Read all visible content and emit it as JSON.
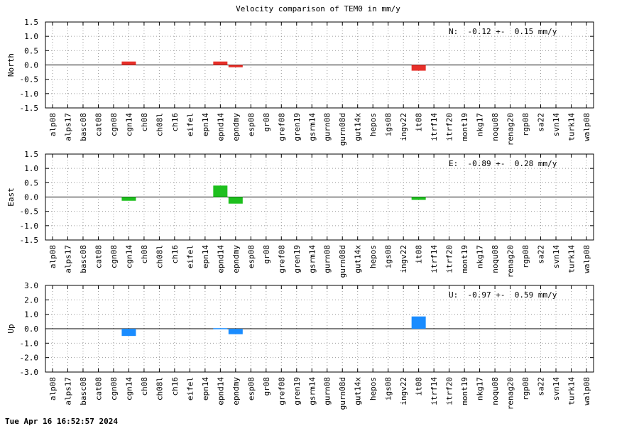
{
  "chart_data": {
    "type": "bar",
    "title": "Velocity comparison of TEM0 in mm/y",
    "categories": [
      "alp08",
      "alps17",
      "basc08",
      "cat08",
      "cgn08",
      "cgn14",
      "ch08",
      "ch08l",
      "ch16",
      "eifel",
      "epn14",
      "epnd14",
      "epndmy",
      "esp08",
      "gr08",
      "gref08",
      "gren19",
      "gsrm14",
      "gurn08",
      "gurn08d",
      "gut14x",
      "hepos",
      "igs08",
      "ingv22",
      "it08",
      "itrf14",
      "itrf20",
      "mont19",
      "nkg17",
      "noqu08",
      "renag20",
      "rgp08",
      "sa22",
      "svn14",
      "turk14",
      "walp08"
    ],
    "panels": [
      {
        "ylabel": "North",
        "color": "#e8302a",
        "ylim": [
          -1.5,
          1.5
        ],
        "ticks": [
          "1.5",
          "1.0",
          "0.5",
          "0.0",
          "-0.5",
          "-1.0",
          "-1.5"
        ],
        "summary": "N:  -0.12 +-  0.15 mm/y",
        "values": [
          null,
          null,
          null,
          null,
          null,
          0.12,
          null,
          null,
          null,
          null,
          null,
          0.12,
          -0.08,
          null,
          null,
          null,
          null,
          null,
          null,
          null,
          null,
          null,
          null,
          null,
          -0.2,
          null,
          null,
          null,
          null,
          null,
          null,
          null,
          null,
          null,
          null,
          null
        ]
      },
      {
        "ylabel": "East",
        "color": "#1ec01e",
        "ylim": [
          -1.5,
          1.5
        ],
        "ticks": [
          "1.5",
          "1.0",
          "0.5",
          "0.0",
          "-0.5",
          "-1.0",
          "-1.5"
        ],
        "summary": "E:  -0.89 +-  0.28 mm/y",
        "values": [
          null,
          null,
          null,
          null,
          null,
          -0.13,
          null,
          null,
          null,
          null,
          null,
          0.4,
          -0.23,
          null,
          null,
          null,
          null,
          null,
          null,
          null,
          null,
          null,
          null,
          null,
          -0.1,
          null,
          null,
          null,
          null,
          null,
          null,
          null,
          null,
          null,
          null,
          null
        ]
      },
      {
        "ylabel": "Up",
        "color": "#1a8cff",
        "ylim": [
          -3.0,
          3.0
        ],
        "ticks": [
          "3.0",
          "2.0",
          "1.0",
          "0.0",
          "-1.0",
          "-2.0",
          "-3.0"
        ],
        "summary": "U:  -0.97 +-  0.59 mm/y",
        "values": [
          null,
          null,
          null,
          null,
          null,
          -0.5,
          null,
          null,
          null,
          null,
          null,
          0.04,
          -0.38,
          null,
          null,
          null,
          null,
          null,
          null,
          null,
          null,
          null,
          null,
          null,
          0.85,
          null,
          null,
          null,
          null,
          null,
          null,
          null,
          null,
          null,
          null,
          null
        ]
      }
    ]
  },
  "footer": {
    "timestamp": "Tue Apr 16 16:52:57 2024"
  }
}
